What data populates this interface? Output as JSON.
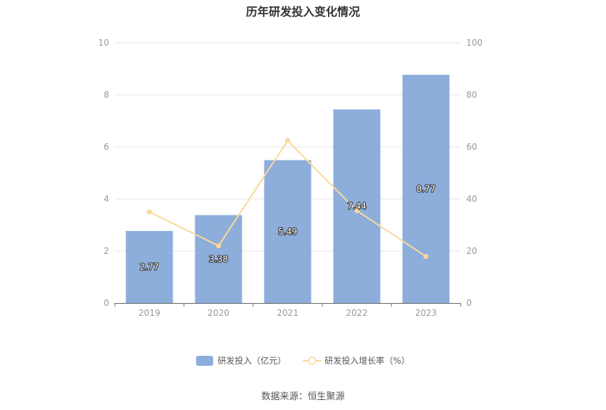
{
  "title": "历年研发投入变化情况",
  "source_text": "数据来源：恒生聚源",
  "legend": [
    {
      "label": "研发投入（亿元）",
      "type": "bar"
    },
    {
      "label": "研发投入增长率（%）",
      "type": "line"
    }
  ],
  "colors": {
    "bar": "#8daedb",
    "line": "#f9d999",
    "grid": "#e6e6e6",
    "axis": "#666666"
  },
  "chart_data": {
    "type": "bar",
    "categories": [
      "2019",
      "2020",
      "2021",
      "2022",
      "2023"
    ],
    "series": [
      {
        "name": "研发投入（亿元）",
        "type": "bar",
        "axis": "left",
        "values": [
          2.77,
          3.38,
          5.49,
          7.44,
          8.77
        ],
        "labels": [
          "2.77",
          "3.38",
          "5.49",
          "7.44",
          "8.77"
        ]
      },
      {
        "name": "研发投入增长率（%）",
        "type": "line",
        "axis": "right",
        "values": [
          35,
          22,
          62.4,
          35.5,
          17.9
        ]
      }
    ],
    "y_left": {
      "min": 0,
      "max": 10,
      "ticks": [
        "0",
        "2",
        "4",
        "6",
        "8",
        "10"
      ]
    },
    "y_right": {
      "min": 0,
      "max": 100,
      "ticks": [
        "0",
        "20",
        "40",
        "60",
        "80",
        "100"
      ]
    },
    "grid": true,
    "legend_position": "bottom"
  }
}
